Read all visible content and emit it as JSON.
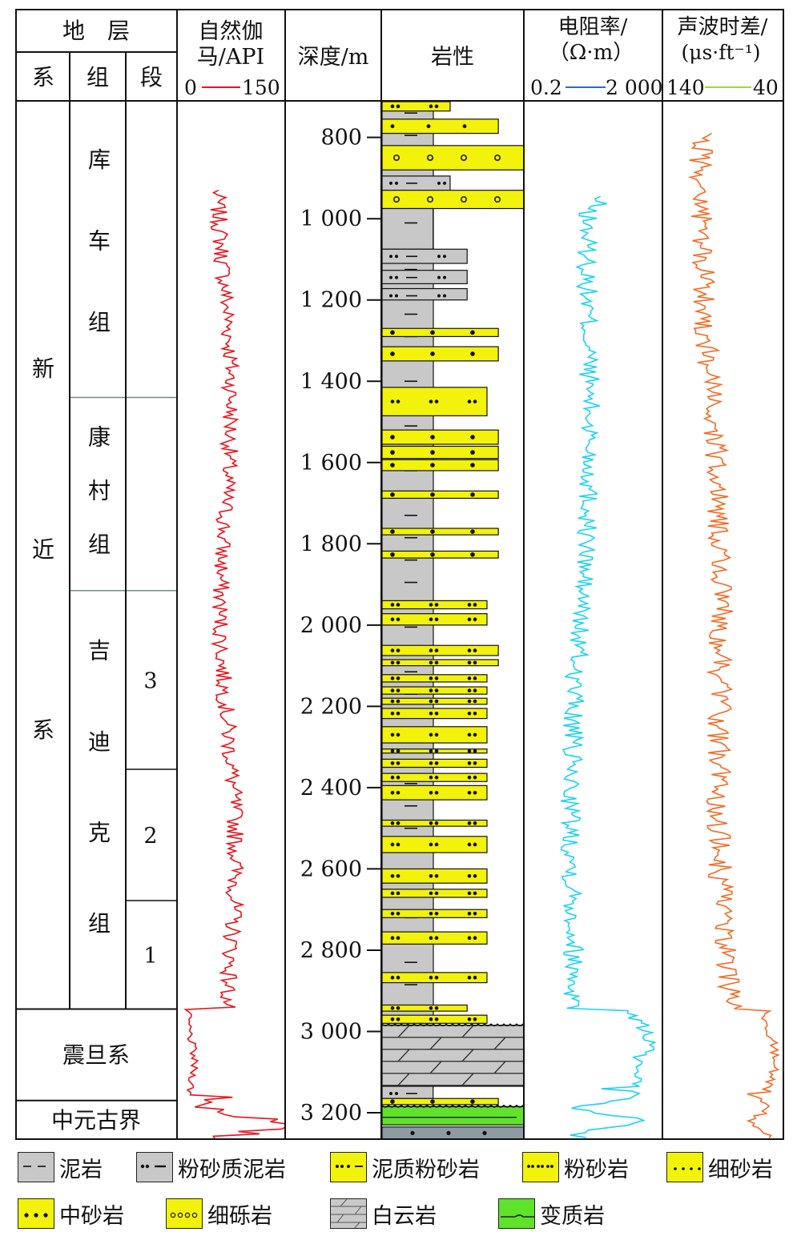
{
  "header": {
    "strat_title": "地　层",
    "col_system": "系",
    "col_group": "组",
    "col_section": "段",
    "gr_title_1": "自然伽",
    "gr_title_2": "马/API",
    "gr_scale_min": "0",
    "gr_scale_max": "150",
    "depth_title": "深度/m",
    "lith_title": "岩性",
    "res_title_1": "电阻率/",
    "res_title_2": "（Ω·m）",
    "res_scale_min": "0.2",
    "res_scale_max": "2 000",
    "ac_title_1": "声波时差/",
    "ac_title_2": "(μs·ft⁻¹)",
    "ac_scale_min": "140",
    "ac_scale_max": "40"
  },
  "strata": {
    "systems": [
      {
        "chars": [
          "新",
          "近",
          "系"
        ],
        "top": 720,
        "bottom": 2945
      },
      {
        "name": "震旦系",
        "top": 2945,
        "bottom": 3170
      },
      {
        "name": "中元古界",
        "top": 3170,
        "bottom": 3265
      }
    ],
    "groups": [
      {
        "chars": [
          "库",
          "车",
          "组"
        ],
        "top": 720,
        "bottom": 1440
      },
      {
        "chars": [
          "康",
          "村",
          "组"
        ],
        "top": 1440,
        "bottom": 1915
      },
      {
        "chars": [
          "吉",
          "迪",
          "克",
          "组"
        ],
        "top": 1915,
        "bottom": 2945
      }
    ],
    "sections": [
      {
        "name": "3",
        "top": 1915,
        "bottom": 2355
      },
      {
        "name": "2",
        "top": 2355,
        "bottom": 2678
      },
      {
        "name": "1",
        "top": 2678,
        "bottom": 2945
      }
    ]
  },
  "depth": {
    "min": 712,
    "max": 3265,
    "ticks": [
      800,
      1000,
      1200,
      1400,
      1600,
      1800,
      2000,
      2200,
      2400,
      2600,
      2800,
      3000,
      3200
    ],
    "labels": [
      "800",
      "1 000",
      "1 200",
      "1 400",
      "1 600",
      "1 800",
      "2 000",
      "2 200",
      "2 400",
      "2 600",
      "2 800",
      "3 000",
      "3 200"
    ]
  },
  "lithology_beds": [
    {
      "type": "siltstone",
      "top": 712,
      "bottom": 735,
      "extent": 0.48
    },
    {
      "type": "fine-sandstone",
      "top": 755,
      "bottom": 790,
      "extent": 0.82
    },
    {
      "type": "fine-conglomerate",
      "top": 820,
      "bottom": 880,
      "extent": 1.0
    },
    {
      "type": "silty-mudstone",
      "top": 895,
      "bottom": 930,
      "extent": 0.48
    },
    {
      "type": "fine-conglomerate",
      "top": 930,
      "bottom": 975,
      "extent": 1.0
    },
    {
      "type": "mudstone",
      "top": 975,
      "bottom": 1075,
      "extent": 0.36
    },
    {
      "type": "silty-mudstone",
      "top": 1075,
      "bottom": 1110,
      "extent": 0.6
    },
    {
      "type": "silty-mudstone",
      "top": 1127,
      "bottom": 1160,
      "extent": 0.6
    },
    {
      "type": "silty-mudstone",
      "top": 1172,
      "bottom": 1200,
      "extent": 0.6
    },
    {
      "type": "medium-sandstone",
      "top": 1270,
      "bottom": 1290,
      "extent": 0.82
    },
    {
      "type": "medium-sandstone",
      "top": 1315,
      "bottom": 1350,
      "extent": 0.82
    },
    {
      "type": "siltstone",
      "top": 1415,
      "bottom": 1485,
      "extent": 0.74
    },
    {
      "type": "medium-sandstone",
      "top": 1520,
      "bottom": 1555,
      "extent": 0.82
    },
    {
      "type": "medium-sandstone",
      "top": 1560,
      "bottom": 1590,
      "extent": 0.82
    },
    {
      "type": "medium-sandstone",
      "top": 1593,
      "bottom": 1620,
      "extent": 0.82
    },
    {
      "type": "medium-sandstone",
      "top": 1670,
      "bottom": 1688,
      "extent": 0.82
    },
    {
      "type": "medium-sandstone",
      "top": 1762,
      "bottom": 1778,
      "extent": 0.82
    },
    {
      "type": "medium-sandstone",
      "top": 1818,
      "bottom": 1835,
      "extent": 0.82
    },
    {
      "type": "siltstone",
      "top": 1940,
      "bottom": 1960,
      "extent": 0.74
    },
    {
      "type": "siltstone",
      "top": 1972,
      "bottom": 2000,
      "extent": 0.74
    },
    {
      "type": "siltstone",
      "top": 2050,
      "bottom": 2075,
      "extent": 0.82
    },
    {
      "type": "siltstone",
      "top": 2085,
      "bottom": 2100,
      "extent": 0.82
    },
    {
      "type": "siltstone",
      "top": 2122,
      "bottom": 2140,
      "extent": 0.74
    },
    {
      "type": "siltstone",
      "top": 2152,
      "bottom": 2170,
      "extent": 0.74
    },
    {
      "type": "siltstone",
      "top": 2180,
      "bottom": 2195,
      "extent": 0.74
    },
    {
      "type": "siltstone",
      "top": 2205,
      "bottom": 2230,
      "extent": 0.74
    },
    {
      "type": "siltstone",
      "top": 2250,
      "bottom": 2290,
      "extent": 0.74
    },
    {
      "type": "siltstone",
      "top": 2305,
      "bottom": 2315,
      "extent": 0.74
    },
    {
      "type": "siltstone",
      "top": 2330,
      "bottom": 2350,
      "extent": 0.74
    },
    {
      "type": "siltstone",
      "top": 2365,
      "bottom": 2385,
      "extent": 0.74
    },
    {
      "type": "siltstone",
      "top": 2395,
      "bottom": 2430,
      "extent": 0.74
    },
    {
      "type": "siltstone",
      "top": 2480,
      "bottom": 2495,
      "extent": 0.74
    },
    {
      "type": "siltstone",
      "top": 2520,
      "bottom": 2560,
      "extent": 0.74
    },
    {
      "type": "siltstone",
      "top": 2600,
      "bottom": 2635,
      "extent": 0.74
    },
    {
      "type": "siltstone",
      "top": 2650,
      "bottom": 2670,
      "extent": 0.74
    },
    {
      "type": "siltstone",
      "top": 2700,
      "bottom": 2720,
      "extent": 0.74
    },
    {
      "type": "siltstone",
      "top": 2755,
      "bottom": 2785,
      "extent": 0.74
    },
    {
      "type": "siltstone",
      "top": 2855,
      "bottom": 2880,
      "extent": 0.74
    },
    {
      "type": "siltstone",
      "top": 2935,
      "bottom": 2950,
      "extent": 0.6
    },
    {
      "type": "siltstone",
      "top": 2960,
      "bottom": 2980,
      "extent": 0.74
    },
    {
      "type": "dolomite",
      "top": 2985,
      "bottom": 3135,
      "extent": 1.0
    },
    {
      "type": "silty-mudstone",
      "top": 3135,
      "bottom": 3165,
      "extent": 0.36
    },
    {
      "type": "medium-sandstone",
      "top": 3165,
      "bottom": 3180,
      "extent": 0.82
    },
    {
      "type": "metamorphic",
      "top": 3185,
      "bottom": 3230,
      "extent": 1.0
    },
    {
      "type": "base-sandstone",
      "top": 3235,
      "bottom": 3265,
      "extent": 1.0
    }
  ],
  "curves": {
    "gr": {
      "name": "GR",
      "color": "#e8141c",
      "unit": "API",
      "scale": [
        0,
        150
      ],
      "start": 930,
      "end": 3265
    },
    "res": {
      "name": "RT",
      "color": "#1cd2f0",
      "unit": "Ω·m",
      "scale": [
        0.2,
        2000
      ],
      "log": true,
      "start": 945,
      "end": 3265
    },
    "ac": {
      "name": "AC",
      "color": "#f26a23",
      "unit": "μs/ft",
      "scale": [
        140,
        40
      ],
      "start": 790,
      "end": 3265
    }
  },
  "legend": [
    {
      "key": "mudstone",
      "label": "泥岩"
    },
    {
      "key": "silty-mudstone",
      "label": "粉砂质泥岩"
    },
    {
      "key": "muddy-siltstone",
      "label": "泥质粉砂岩"
    },
    {
      "key": "siltstone",
      "label": "粉砂岩"
    },
    {
      "key": "fine-sandstone",
      "label": "细砂岩"
    },
    {
      "key": "medium-sandstone",
      "label": "中砂岩"
    },
    {
      "key": "fine-conglomerate",
      "label": "细砾岩"
    },
    {
      "key": "dolomite",
      "label": "白云岩"
    },
    {
      "key": "metamorphic",
      "label": "变质岩"
    }
  ],
  "colors": {
    "mudstone": "#c8c8c8",
    "sand": "#f2f20a",
    "dolomite": "#c9c9c9",
    "metamorphic": "#5fe22a",
    "base": "#8e9ba3"
  }
}
